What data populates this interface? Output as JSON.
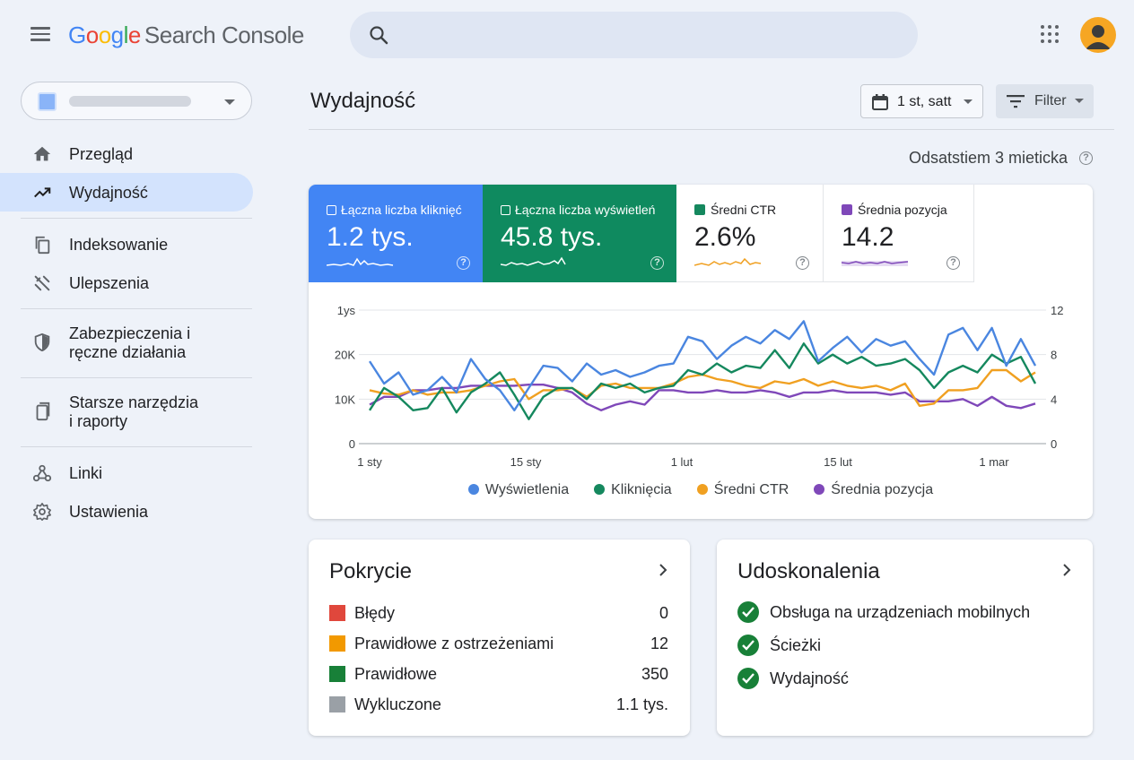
{
  "app": {
    "logo_parts": [
      "G",
      "o",
      "o",
      "g",
      "l",
      "e"
    ],
    "product_name": "Search Console"
  },
  "search": {
    "placeholder": ""
  },
  "sidebar": {
    "items": [
      {
        "label": "Przegląd",
        "icon": "home-icon"
      },
      {
        "label": "Wydajność",
        "icon": "trending-up-icon",
        "active": true
      },
      {
        "label": "Indeksowanie",
        "icon": "copy-icon"
      },
      {
        "label": "Ulepszenia",
        "icon": "tools-icon"
      },
      {
        "label": "Zabezpieczenia i\nręczne działania",
        "icon": "shield-icon"
      },
      {
        "label": "Starsze narzędzia\ni raporty",
        "icon": "device-icon"
      },
      {
        "label": "Linki",
        "icon": "links-icon"
      },
      {
        "label": "Ustawienia",
        "icon": "gear-icon"
      }
    ]
  },
  "main": {
    "title": "Wydajność",
    "date_range": "1 st, satt",
    "filter_label": "Filter",
    "updated_text": "Odsatstiem 3 mieticka"
  },
  "metrics": [
    {
      "label": "Łączna liczba kliknięć",
      "value": "1.2 tys."
    },
    {
      "label": "Łączna liczba wyświetleń",
      "value": "45.8 tys."
    },
    {
      "label": "Średni CTR",
      "value": "2.6%"
    },
    {
      "label": "Średnia pozycja",
      "value": "14.2"
    }
  ],
  "colors": {
    "impressions": "#4a86e0",
    "clicks": "#15885e",
    "ctr": "#f0a021",
    "position": "#7f48b9",
    "error": "#e0473c",
    "warning": "#f29900",
    "valid": "#188038",
    "excluded": "#9aa0a6"
  },
  "chart_data": {
    "type": "line",
    "x_tick_labels": [
      "1 sty",
      "15 sty",
      "1 lut",
      "15 lut",
      "1 mar"
    ],
    "left_axis": {
      "tick_labels": [
        "0",
        "10K",
        "20K",
        "1ys"
      ],
      "range": [
        0,
        30000
      ]
    },
    "right_axis": {
      "tick_labels": [
        "0",
        "4",
        "8",
        "12"
      ],
      "range": [
        0,
        12
      ]
    },
    "grid": true,
    "legend_position": "bottom",
    "series": [
      {
        "name": "Wyświetlenia",
        "axis": "left",
        "values": [
          18500,
          13500,
          16000,
          11000,
          12000,
          15000,
          11500,
          19000,
          14500,
          12000,
          7500,
          12500,
          17500,
          17000,
          14000,
          18000,
          15500,
          16500,
          15000,
          16000,
          17500,
          18000,
          24000,
          23000,
          19000,
          22000,
          24000,
          22500,
          25500,
          23500,
          27500,
          18500,
          21500,
          24000,
          20500,
          23500,
          22000,
          23000,
          19000,
          15500,
          24500,
          26000,
          21000,
          26000,
          17500,
          23500,
          17500
        ]
      },
      {
        "name": "Kliknięcia",
        "axis": "left",
        "values": [
          7500,
          12500,
          10500,
          7500,
          8000,
          12500,
          7000,
          11500,
          13500,
          16000,
          11000,
          5500,
          10500,
          12500,
          12500,
          10000,
          13500,
          12500,
          13500,
          11500,
          12500,
          13000,
          16500,
          15500,
          18000,
          16000,
          17500,
          17000,
          21000,
          17000,
          22500,
          18000,
          20000,
          18000,
          19500,
          17500,
          18000,
          19000,
          16500,
          12500,
          16000,
          17500,
          16000,
          20000,
          18000,
          19500,
          13500
        ]
      },
      {
        "name": "Średni CTR",
        "axis": "right",
        "values": [
          4.8,
          4.5,
          4.4,
          4.8,
          4.4,
          4.6,
          4.6,
          4.8,
          5.2,
          5.6,
          5.8,
          4.0,
          4.8,
          4.8,
          5.0,
          4.2,
          5.2,
          5.4,
          5.0,
          5.0,
          5.0,
          5.4,
          6.0,
          6.2,
          5.8,
          5.6,
          5.2,
          5.0,
          5.6,
          5.4,
          5.8,
          5.2,
          5.6,
          5.2,
          5.0,
          5.2,
          4.8,
          5.4,
          3.4,
          3.6,
          4.8,
          4.8,
          5.0,
          6.6,
          6.6,
          5.6,
          6.4
        ]
      },
      {
        "name": "Średnia pozycja",
        "axis": "right",
        "values": [
          3.5,
          4.2,
          4.2,
          4.8,
          4.8,
          5.0,
          5.0,
          5.2,
          5.2,
          5.2,
          5.2,
          5.3,
          5.3,
          5.0,
          4.6,
          3.6,
          3.0,
          3.5,
          3.8,
          3.5,
          4.8,
          4.8,
          4.6,
          4.6,
          4.8,
          4.6,
          4.6,
          4.8,
          4.6,
          4.2,
          4.6,
          4.6,
          4.8,
          4.6,
          4.6,
          4.6,
          4.4,
          4.6,
          3.8,
          3.8,
          3.8,
          4.0,
          3.4,
          4.2,
          3.4,
          3.2,
          3.6
        ]
      }
    ]
  },
  "coverage": {
    "title": "Pokrycie",
    "rows": [
      {
        "label": "Błędy",
        "value": "0",
        "color": "#e0473c"
      },
      {
        "label": "Prawidłowe z ostrzeżeniami",
        "value": "12",
        "color": "#f29900"
      },
      {
        "label": "Prawidłowe",
        "value": "350",
        "color": "#188038"
      },
      {
        "label": "Wykluczone",
        "value": "1.1 tys.",
        "color": "#9aa0a6"
      }
    ]
  },
  "enhancements": {
    "title": "Udoskonalenia",
    "rows": [
      {
        "label": "Obsługa na urządzeniach mobilnych"
      },
      {
        "label": "Ścieżki"
      },
      {
        "label": "Wydajność"
      }
    ]
  }
}
